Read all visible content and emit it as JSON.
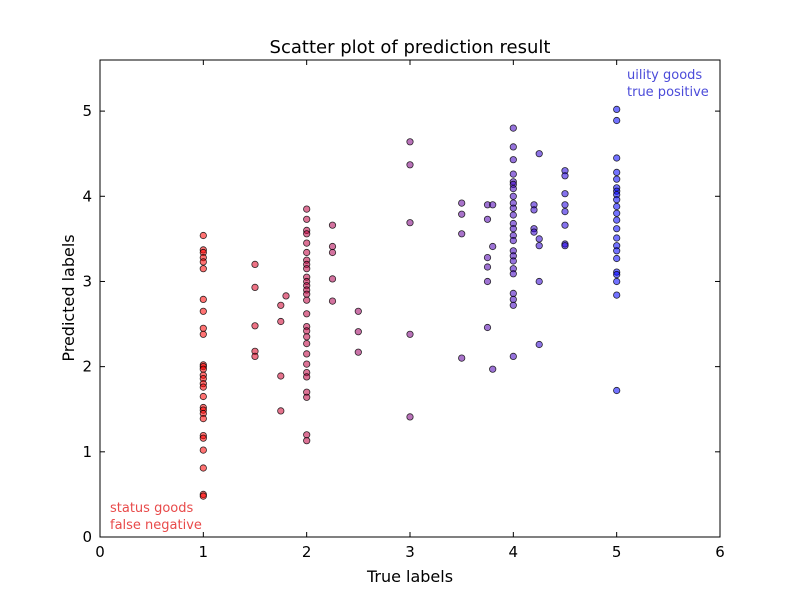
{
  "chart_data": {
    "type": "scatter",
    "title": "Scatter plot of prediction result",
    "xlabel": "True labels",
    "ylabel": "Predicted labels",
    "xlim": [
      0,
      6
    ],
    "ylim": [
      0,
      5.6
    ],
    "xticks": [
      "0",
      "1",
      "2",
      "3",
      "4",
      "5",
      "6"
    ],
    "yticks": [
      "0",
      "1",
      "2",
      "3",
      "4",
      "5"
    ],
    "grid": false,
    "colors": {
      "low": "#ff0000",
      "high": "#0000ff",
      "edge": "#000000"
    },
    "annotations": [
      {
        "id": "top",
        "lines": [
          "uility goods",
          "true positive"
        ],
        "color": "#4b4bd9"
      },
      {
        "id": "bottom",
        "lines": [
          "status goods",
          "false negative"
        ],
        "color": "#e84a4a"
      }
    ],
    "points": [
      [
        1,
        3.54
      ],
      [
        1,
        3.37
      ],
      [
        1,
        3.34
      ],
      [
        1,
        3.28
      ],
      [
        1,
        3.23
      ],
      [
        1,
        3.15
      ],
      [
        1,
        2.79
      ],
      [
        1,
        2.65
      ],
      [
        1,
        2.45
      ],
      [
        1,
        2.38
      ],
      [
        1,
        2.02
      ],
      [
        1,
        2.0
      ],
      [
        1,
        1.97
      ],
      [
        1,
        1.9
      ],
      [
        1,
        1.86
      ],
      [
        1,
        1.8
      ],
      [
        1,
        1.76
      ],
      [
        1,
        1.65
      ],
      [
        1,
        1.52
      ],
      [
        1,
        1.49
      ],
      [
        1,
        1.45
      ],
      [
        1,
        1.39
      ],
      [
        1,
        1.19
      ],
      [
        1,
        1.16
      ],
      [
        1,
        1.02
      ],
      [
        1,
        0.81
      ],
      [
        1,
        0.5
      ],
      [
        1,
        0.48
      ],
      [
        1.5,
        3.2
      ],
      [
        1.5,
        2.93
      ],
      [
        1.5,
        2.48
      ],
      [
        1.5,
        2.18
      ],
      [
        1.5,
        2.12
      ],
      [
        1.75,
        2.72
      ],
      [
        1.75,
        2.53
      ],
      [
        1.75,
        1.89
      ],
      [
        1.75,
        1.48
      ],
      [
        1.8,
        2.83
      ],
      [
        2,
        3.85
      ],
      [
        2,
        3.73
      ],
      [
        2,
        3.6
      ],
      [
        2,
        3.56
      ],
      [
        2,
        3.45
      ],
      [
        2,
        3.34
      ],
      [
        2,
        3.25
      ],
      [
        2,
        3.2
      ],
      [
        2,
        3.15
      ],
      [
        2,
        3.05
      ],
      [
        2,
        3.0
      ],
      [
        2,
        2.95
      ],
      [
        2,
        2.9
      ],
      [
        2,
        2.85
      ],
      [
        2,
        2.78
      ],
      [
        2,
        2.62
      ],
      [
        2,
        2.47
      ],
      [
        2,
        2.42
      ],
      [
        2,
        2.35
      ],
      [
        2,
        2.27
      ],
      [
        2,
        2.15
      ],
      [
        2,
        2.03
      ],
      [
        2,
        1.93
      ],
      [
        2,
        1.88
      ],
      [
        2,
        1.7
      ],
      [
        2,
        1.64
      ],
      [
        2,
        1.2
      ],
      [
        2,
        1.13
      ],
      [
        2.25,
        3.66
      ],
      [
        2.25,
        3.41
      ],
      [
        2.25,
        3.34
      ],
      [
        2.25,
        3.03
      ],
      [
        2.25,
        2.77
      ],
      [
        2.5,
        2.65
      ],
      [
        2.5,
        2.41
      ],
      [
        2.5,
        2.17
      ],
      [
        3,
        4.64
      ],
      [
        3,
        4.37
      ],
      [
        3,
        3.69
      ],
      [
        3,
        2.38
      ],
      [
        3,
        1.41
      ],
      [
        3.5,
        3.92
      ],
      [
        3.5,
        3.79
      ],
      [
        3.5,
        3.56
      ],
      [
        3.5,
        2.1
      ],
      [
        3.75,
        3.9
      ],
      [
        3.75,
        3.73
      ],
      [
        3.75,
        3.28
      ],
      [
        3.75,
        3.17
      ],
      [
        3.75,
        3.0
      ],
      [
        3.75,
        2.46
      ],
      [
        3.8,
        3.9
      ],
      [
        3.8,
        3.41
      ],
      [
        3.8,
        1.97
      ],
      [
        4,
        4.8
      ],
      [
        4,
        4.58
      ],
      [
        4,
        4.43
      ],
      [
        4,
        4.26
      ],
      [
        4,
        4.17
      ],
      [
        4,
        4.14
      ],
      [
        4,
        4.09
      ],
      [
        4,
        4.0
      ],
      [
        4,
        3.92
      ],
      [
        4,
        3.86
      ],
      [
        4,
        3.78
      ],
      [
        4,
        3.68
      ],
      [
        4,
        3.62
      ],
      [
        4,
        3.54
      ],
      [
        4,
        3.48
      ],
      [
        4,
        3.36
      ],
      [
        4,
        3.3
      ],
      [
        4,
        3.24
      ],
      [
        4,
        3.15
      ],
      [
        4,
        3.09
      ],
      [
        4,
        2.86
      ],
      [
        4,
        2.79
      ],
      [
        4,
        2.72
      ],
      [
        4,
        2.12
      ],
      [
        4.2,
        3.9
      ],
      [
        4.2,
        3.84
      ],
      [
        4.2,
        3.62
      ],
      [
        4.2,
        3.58
      ],
      [
        4.25,
        4.5
      ],
      [
        4.25,
        3.5
      ],
      [
        4.25,
        3.42
      ],
      [
        4.25,
        3.0
      ],
      [
        4.25,
        2.26
      ],
      [
        4.5,
        4.3
      ],
      [
        4.5,
        4.24
      ],
      [
        4.5,
        4.03
      ],
      [
        4.5,
        3.9
      ],
      [
        4.5,
        3.82
      ],
      [
        4.5,
        3.66
      ],
      [
        4.5,
        3.44
      ],
      [
        4.5,
        3.42
      ],
      [
        5,
        5.02
      ],
      [
        5,
        4.89
      ],
      [
        5,
        4.45
      ],
      [
        5,
        4.28
      ],
      [
        5,
        4.2
      ],
      [
        5,
        4.1
      ],
      [
        5,
        4.06
      ],
      [
        5,
        4.02
      ],
      [
        5,
        3.96
      ],
      [
        5,
        3.88
      ],
      [
        5,
        3.8
      ],
      [
        5,
        3.72
      ],
      [
        5,
        3.62
      ],
      [
        5,
        3.51
      ],
      [
        5,
        3.42
      ],
      [
        5,
        3.36
      ],
      [
        5,
        3.27
      ],
      [
        5,
        3.11
      ],
      [
        5,
        3.08
      ],
      [
        5,
        3.0
      ],
      [
        5,
        2.84
      ],
      [
        5,
        1.72
      ]
    ]
  }
}
